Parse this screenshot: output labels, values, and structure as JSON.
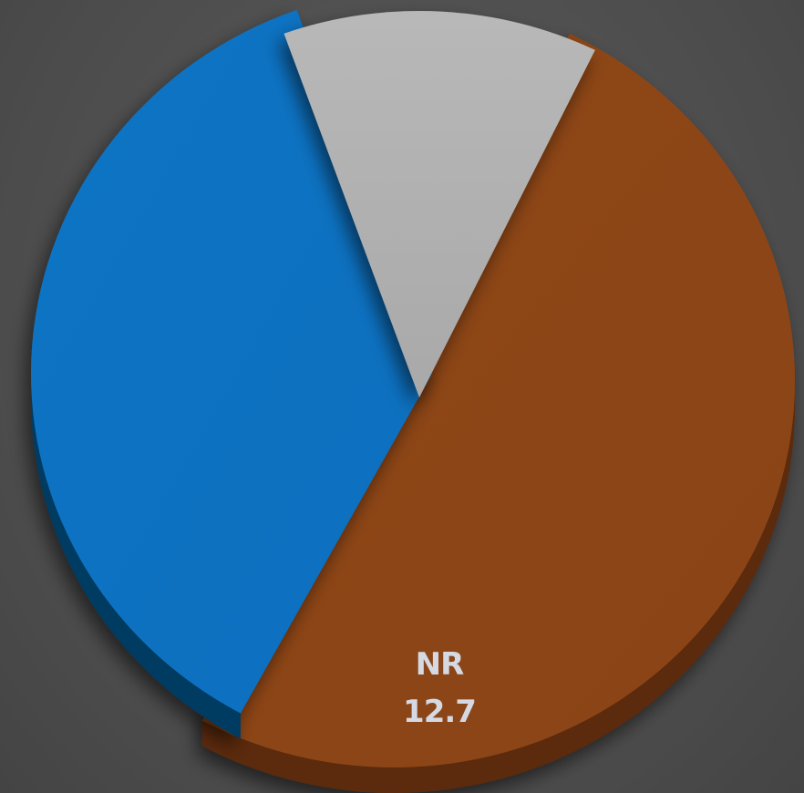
{
  "chart_data": {
    "type": "pie",
    "title": "",
    "slices": [
      {
        "name": "",
        "value": 50.7,
        "color": "#8a4315",
        "label": "",
        "value_label": ""
      },
      {
        "name": "",
        "value": 36.6,
        "color": "#0872c2",
        "label": "",
        "value_label": ""
      },
      {
        "name": "NR",
        "value": 12.7,
        "color": "#b0b0b0",
        "label": "NR",
        "value_label": "12.7"
      }
    ],
    "style": "3d-exploded",
    "legend": "none"
  }
}
